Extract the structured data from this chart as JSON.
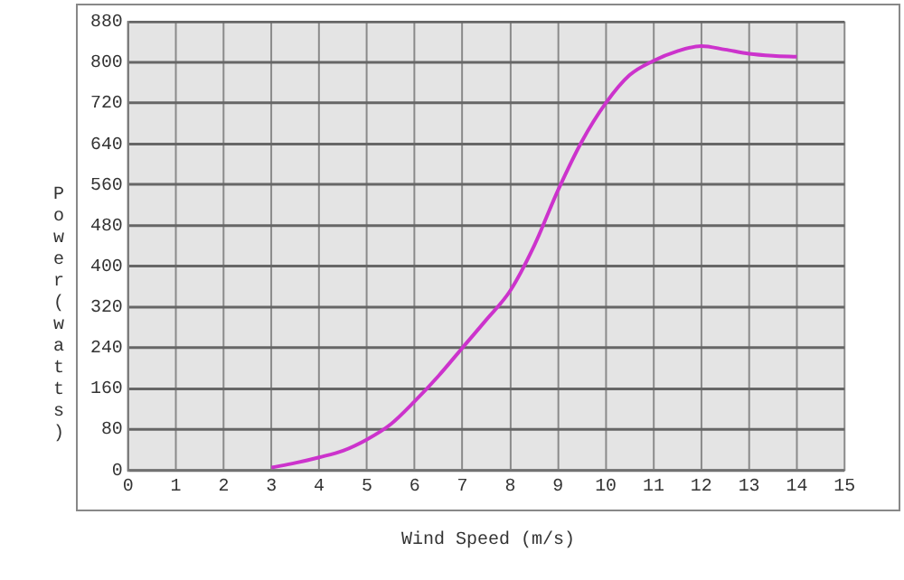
{
  "chart_data": {
    "type": "line",
    "xlabel": "Wind Speed (m/s)",
    "ylabel": "Power(watts)",
    "x": [
      3,
      3.5,
      4,
      4.5,
      5,
      5.5,
      6,
      6.5,
      7,
      7.5,
      8,
      8.5,
      9,
      9.5,
      10,
      10.5,
      11,
      11.5,
      12,
      12.5,
      13,
      13.5,
      14
    ],
    "series": [
      {
        "color": "#cc33cc",
        "values": [
          5,
          14,
          25,
          38,
          60,
          90,
          135,
          185,
          240,
          295,
          352,
          440,
          549,
          645,
          720,
          775,
          803,
          822,
          832,
          825,
          817,
          813,
          811
        ]
      }
    ],
    "xlim": [
      0,
      15
    ],
    "xticks": [
      0,
      1,
      2,
      3,
      4,
      5,
      6,
      7,
      8,
      9,
      10,
      11,
      12,
      13,
      14,
      15
    ],
    "ylim": [
      0,
      880
    ],
    "yticks": [
      0,
      80,
      160,
      240,
      320,
      400,
      480,
      560,
      640,
      720,
      800,
      880
    ],
    "grid": true,
    "legend": false,
    "marker": "none",
    "line_style": "solid"
  }
}
